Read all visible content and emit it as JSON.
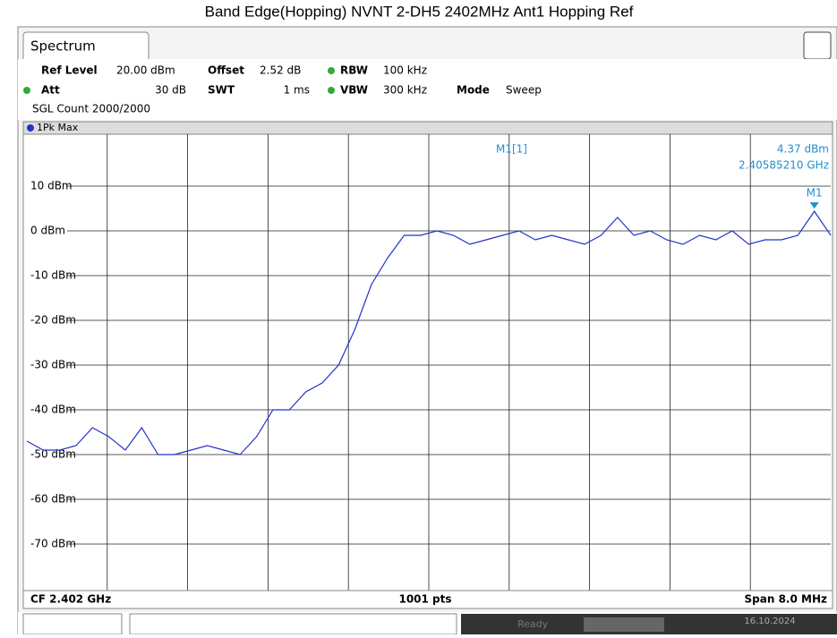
{
  "chart_data": {
    "type": "line",
    "title": "Band Edge(Hopping) NVNT 2-DH5 2402MHz Ant1 Hopping Ref",
    "trace_label": "1Pk Max",
    "series": [
      {
        "name": "1Pk Max",
        "color": "#2233cc",
        "values": [
          -47,
          -49,
          -49,
          -48,
          -44,
          -46,
          -49,
          -44,
          -50,
          -50,
          -49,
          -48,
          -49,
          -50,
          -46,
          -40,
          -40,
          -36,
          -34,
          -30,
          -22,
          -12,
          -6,
          -1,
          -1,
          0,
          -1,
          -3,
          -2,
          -1,
          0,
          -2,
          -1,
          -2,
          -3,
          -1,
          3,
          -1,
          0,
          -2,
          -3,
          -1,
          -2,
          0,
          -3,
          -2,
          -2,
          -1,
          4.37,
          -1
        ]
      }
    ],
    "ylim": [
      -80,
      20
    ],
    "yticks": [
      {
        "value": 10,
        "label": "10 dBm"
      },
      {
        "value": 0,
        "label": "0 dBm"
      },
      {
        "value": -10,
        "label": "-10 dBm"
      },
      {
        "value": -20,
        "label": "-20 dBm"
      },
      {
        "value": -30,
        "label": "-30 dBm"
      },
      {
        "value": -40,
        "label": "-40 dBm"
      },
      {
        "value": -50,
        "label": "-50 dBm"
      },
      {
        "value": -60,
        "label": "-60 dBm"
      },
      {
        "value": -70,
        "label": "-70 dBm"
      }
    ],
    "grid": true,
    "marker": {
      "name": "M1",
      "readout": "M1[1]",
      "level": "4.37 dBm",
      "frequency": "2.40585210 GHz"
    },
    "footer": {
      "center_freq": "CF 2.402 GHz",
      "points": "1001 pts",
      "span": "Span 8.0 MHz"
    }
  },
  "tab": "Spectrum",
  "settings": {
    "ref_level_key": "Ref Level",
    "ref_level": "20.00 dBm",
    "offset_key": "Offset",
    "offset": "2.52 dB",
    "rbw_key": "RBW",
    "rbw": "100 kHz",
    "att_key": "Att",
    "att": "30 dB",
    "swt_key": "SWT",
    "swt": "1 ms",
    "vbw_key": "VBW",
    "vbw": "300 kHz",
    "mode_key": "Mode",
    "mode": "Sweep",
    "count": "SGL Count 2000/2000"
  },
  "status": {
    "state": "Ready",
    "date": "16.10.2024"
  }
}
